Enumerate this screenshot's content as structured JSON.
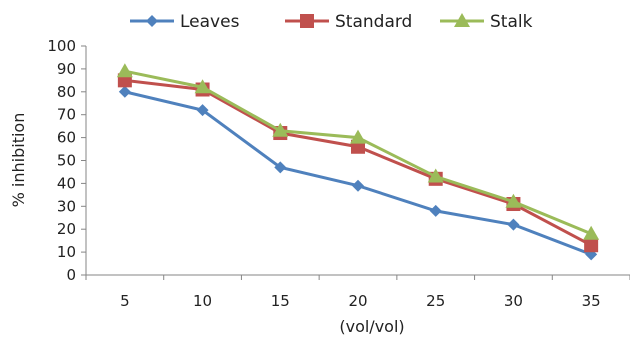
{
  "chart_data": {
    "type": "line",
    "title": "",
    "xlabel": "(vol/vol)",
    "ylabel": "% inhibition",
    "x": [
      5,
      10,
      15,
      20,
      25,
      30,
      35
    ],
    "ylim": [
      0,
      100
    ],
    "ytick_step": 10,
    "grid": false,
    "legend_position": "top",
    "series": [
      {
        "name": "Leaves",
        "values": [
          80,
          72,
          47,
          39,
          28,
          22,
          9
        ],
        "color": "#4f81bd",
        "marker": "diamond"
      },
      {
        "name": "Standard",
        "values": [
          85,
          81,
          62,
          56,
          42,
          31,
          13
        ],
        "color": "#c0504d",
        "marker": "square"
      },
      {
        "name": "Stalk",
        "values": [
          89,
          82,
          63,
          60,
          43,
          32,
          18
        ],
        "color": "#9bbb59",
        "marker": "triangle"
      }
    ]
  }
}
